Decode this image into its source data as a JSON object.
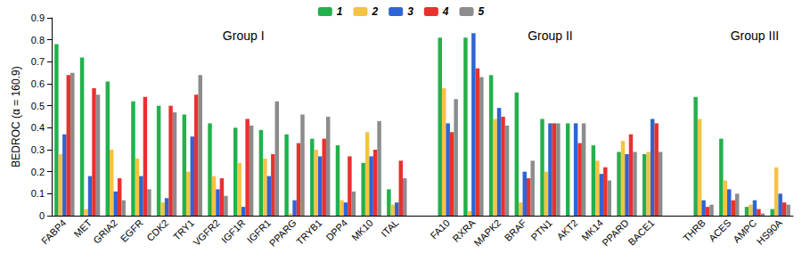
{
  "chart_data": {
    "type": "bar",
    "y_label": "BEDROC (α = 160.9)",
    "categories": [
      "FABP4",
      "MET",
      "GRIA2",
      "EGFR",
      "CDK2",
      "TRY1",
      "VGFR2",
      "IGF1R",
      "IGFR1",
      "PPARG",
      "TRYB1",
      "DPP4",
      "MK10",
      "ITAL",
      null,
      "FA10",
      "RXRA",
      "MAPK2",
      "BRAF",
      "PTN1",
      "AKT2",
      "MK14",
      "PPARD",
      "BACE1",
      null,
      "THRB",
      "ACES",
      "AMPC",
      "HS90A"
    ],
    "series": [
      {
        "name": "1",
        "color": "#22b14c",
        "values": [
          0.78,
          0.72,
          0.61,
          0.52,
          0.5,
          0.46,
          0.42,
          0.4,
          0.39,
          0.37,
          0.35,
          0.32,
          0.24,
          0.12,
          null,
          0.81,
          0.81,
          0.64,
          0.56,
          0.44,
          0.42,
          0.32,
          0.29,
          0.28,
          null,
          0.54,
          0.35,
          0.04,
          0.03
        ]
      },
      {
        "name": "2",
        "color": "#f5c342",
        "values": [
          0.28,
          0.03,
          0.3,
          0.26,
          0.06,
          0.2,
          0.18,
          0.24,
          0.26,
          0.01,
          0.3,
          0.07,
          0.38,
          0.05,
          null,
          0.58,
          0.02,
          0.44,
          0.06,
          0.2,
          0.0,
          0.25,
          0.34,
          0.29,
          null,
          0.44,
          0.16,
          0.05,
          0.22
        ]
      },
      {
        "name": "3",
        "color": "#2f64d6",
        "values": [
          0.37,
          0.18,
          0.11,
          0.18,
          0.08,
          0.36,
          0.12,
          0.04,
          0.18,
          0.07,
          0.27,
          0.06,
          0.27,
          0.06,
          null,
          0.42,
          0.83,
          0.49,
          0.2,
          0.42,
          0.42,
          0.19,
          0.28,
          0.44,
          null,
          0.07,
          0.12,
          0.07,
          0.1
        ]
      },
      {
        "name": "4",
        "color": "#e8312f",
        "values": [
          0.64,
          0.58,
          0.17,
          0.54,
          0.5,
          0.55,
          0.17,
          0.44,
          0.28,
          0.33,
          0.35,
          0.27,
          0.3,
          0.25,
          null,
          0.38,
          0.67,
          0.45,
          0.17,
          0.42,
          0.33,
          0.22,
          0.37,
          0.42,
          null,
          0.04,
          0.07,
          0.03,
          0.06
        ]
      },
      {
        "name": "5",
        "color": "#8c8c8c",
        "values": [
          0.65,
          0.55,
          0.07,
          0.12,
          0.47,
          0.64,
          0.09,
          0.41,
          0.52,
          0.46,
          0.45,
          0.11,
          0.43,
          0.17,
          null,
          0.53,
          0.63,
          0.41,
          0.25,
          0.42,
          0.42,
          0.16,
          0.29,
          0.29,
          null,
          0.05,
          0.1,
          0.01,
          0.05
        ]
      }
    ],
    "ylim": [
      0,
      0.9
    ],
    "yticks": [
      0,
      0.1,
      0.2,
      0.3,
      0.4,
      0.5,
      0.6,
      0.7,
      0.8,
      0.9
    ],
    "annotations": [
      {
        "text": "Group I",
        "x": "IGF1R",
        "y": 0.82
      },
      {
        "text": "Group II",
        "x": "PTN1",
        "y": 0.82
      },
      {
        "text": "Group III",
        "x": "AMPC",
        "y": 0.82
      }
    ],
    "legend": "top",
    "grid": false
  }
}
